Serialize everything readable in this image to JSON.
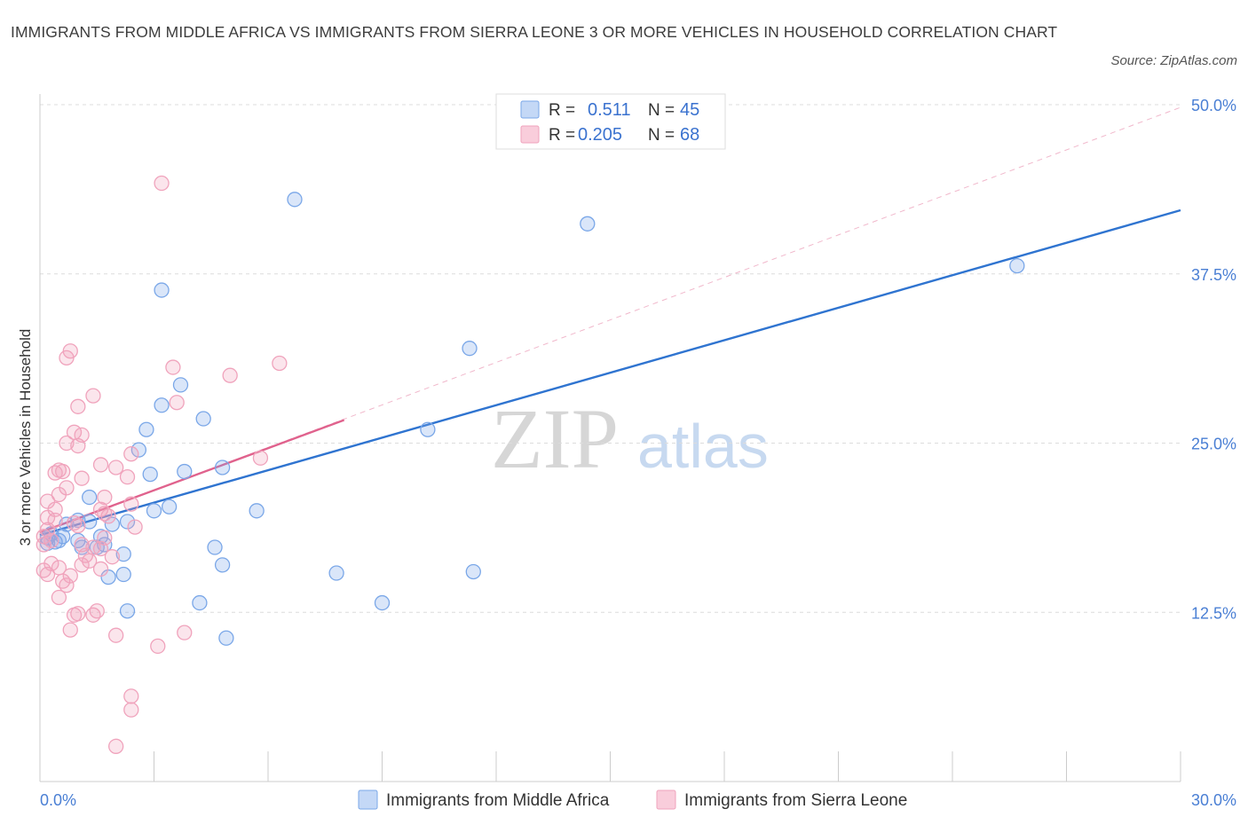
{
  "title": "IMMIGRANTS FROM MIDDLE AFRICA VS IMMIGRANTS FROM SIERRA LEONE 3 OR MORE VEHICLES IN HOUSEHOLD CORRELATION CHART",
  "source": "Source: ZipAtlas.com",
  "watermark": {
    "zip": "ZIP",
    "atlas": "atlas"
  },
  "legend_top": [
    {
      "r_label": "R =",
      "r_value": "0.511",
      "n_label": "N =",
      "n_value": "45",
      "color": "#7aa7e8"
    },
    {
      "r_label": "R =",
      "r_value": "0.205",
      "n_label": "N =",
      "n_value": "68",
      "color": "#f0a3bc"
    }
  ],
  "legend_bottom": [
    {
      "label": "Immigrants from Middle Africa",
      "color": "#7aa7e8"
    },
    {
      "label": "Immigrants from Sierra Leone",
      "color": "#f0a3bc"
    }
  ],
  "chart_data": {
    "type": "scatter",
    "title": "IMMIGRANTS FROM MIDDLE AFRICA VS IMMIGRANTS FROM SIERRA LEONE 3 OR MORE VEHICLES IN HOUSEHOLD CORRELATION CHART",
    "xlabel": "",
    "ylabel": "3 or more Vehicles in Household",
    "xlim": [
      0,
      30
    ],
    "ylim": [
      0,
      50
    ],
    "x_tick_labels": [
      "0.0%",
      "30.0%"
    ],
    "y_ticks": [
      12.5,
      25.0,
      37.5,
      50.0
    ],
    "y_tick_labels": [
      "12.5%",
      "25.0%",
      "37.5%",
      "50.0%"
    ],
    "grid": true,
    "series": [
      {
        "name": "Immigrants from Middle Africa",
        "color": "#7aa7e8",
        "line_color": "#2f74d0",
        "trend": {
          "x": [
            0,
            30
          ],
          "y": [
            18.2,
            42.2
          ]
        },
        "points": [
          [
            0.2,
            18.0
          ],
          [
            0.3,
            18.3
          ],
          [
            0.4,
            17.7
          ],
          [
            0.5,
            17.8
          ],
          [
            0.6,
            18.1
          ],
          [
            0.2,
            17.6
          ],
          [
            0.7,
            19.0
          ],
          [
            1.0,
            19.3
          ],
          [
            1.3,
            19.2
          ],
          [
            1.0,
            17.8
          ],
          [
            1.1,
            17.3
          ],
          [
            1.5,
            17.3
          ],
          [
            1.6,
            18.1
          ],
          [
            1.7,
            17.5
          ],
          [
            1.3,
            21.0
          ],
          [
            1.9,
            19.0
          ],
          [
            2.3,
            19.2
          ],
          [
            2.2,
            16.8
          ],
          [
            2.6,
            24.5
          ],
          [
            2.8,
            26.0
          ],
          [
            2.9,
            22.7
          ],
          [
            3.0,
            20.0
          ],
          [
            3.2,
            27.8
          ],
          [
            3.4,
            20.3
          ],
          [
            3.7,
            29.3
          ],
          [
            3.8,
            22.9
          ],
          [
            4.3,
            26.8
          ],
          [
            4.6,
            17.3
          ],
          [
            4.8,
            23.2
          ],
          [
            4.8,
            16.0
          ],
          [
            5.7,
            20.0
          ],
          [
            6.7,
            43.0
          ],
          [
            7.8,
            15.4
          ],
          [
            9.0,
            13.2
          ],
          [
            10.2,
            26.0
          ],
          [
            11.3,
            32.0
          ],
          [
            11.4,
            15.5
          ],
          [
            14.4,
            41.2
          ],
          [
            25.7,
            38.1
          ],
          [
            4.2,
            13.2
          ],
          [
            4.9,
            10.6
          ],
          [
            2.3,
            12.6
          ],
          [
            3.2,
            36.3
          ],
          [
            2.2,
            15.3
          ],
          [
            1.8,
            15.1
          ]
        ]
      },
      {
        "name": "Immigrants from Sierra Leone",
        "color": "#f0a3bc",
        "line_color": "#e0628d",
        "trend": {
          "x": [
            0,
            8.0
          ],
          "y": [
            18.4,
            26.7
          ]
        },
        "trend_dashed": {
          "x": [
            0,
            30
          ],
          "y": [
            18.4,
            49.8
          ]
        },
        "points": [
          [
            3.2,
            44.2
          ],
          [
            0.7,
            31.3
          ],
          [
            0.8,
            31.8
          ],
          [
            1.4,
            28.5
          ],
          [
            1.0,
            27.7
          ],
          [
            6.3,
            30.9
          ],
          [
            3.5,
            30.6
          ],
          [
            5.0,
            30.0
          ],
          [
            3.6,
            28.0
          ],
          [
            0.9,
            25.8
          ],
          [
            1.1,
            25.6
          ],
          [
            0.7,
            25.0
          ],
          [
            1.0,
            24.8
          ],
          [
            2.4,
            24.2
          ],
          [
            5.8,
            23.9
          ],
          [
            1.6,
            23.4
          ],
          [
            2.0,
            23.2
          ],
          [
            0.5,
            23.0
          ],
          [
            0.6,
            22.9
          ],
          [
            0.4,
            22.8
          ],
          [
            2.3,
            22.5
          ],
          [
            1.1,
            22.4
          ],
          [
            0.7,
            21.7
          ],
          [
            0.5,
            21.2
          ],
          [
            0.2,
            20.7
          ],
          [
            1.7,
            21.0
          ],
          [
            2.4,
            20.5
          ],
          [
            0.4,
            20.1
          ],
          [
            1.6,
            20.1
          ],
          [
            1.7,
            19.8
          ],
          [
            0.2,
            19.5
          ],
          [
            0.4,
            19.3
          ],
          [
            1.0,
            18.9
          ],
          [
            2.5,
            18.8
          ],
          [
            0.2,
            18.6
          ],
          [
            0.1,
            18.1
          ],
          [
            1.7,
            18.0
          ],
          [
            1.1,
            17.5
          ],
          [
            1.4,
            17.3
          ],
          [
            0.1,
            17.5
          ],
          [
            1.6,
            17.2
          ],
          [
            1.2,
            16.7
          ],
          [
            1.3,
            16.3
          ],
          [
            0.3,
            16.1
          ],
          [
            1.1,
            16.0
          ],
          [
            1.6,
            15.7
          ],
          [
            0.1,
            15.6
          ],
          [
            0.2,
            15.3
          ],
          [
            0.8,
            15.2
          ],
          [
            0.6,
            14.8
          ],
          [
            0.7,
            14.5
          ],
          [
            0.5,
            13.6
          ],
          [
            0.9,
            12.3
          ],
          [
            1.4,
            12.3
          ],
          [
            1.5,
            12.6
          ],
          [
            0.8,
            11.2
          ],
          [
            2.0,
            10.8
          ],
          [
            3.1,
            10.0
          ],
          [
            3.8,
            11.0
          ],
          [
            2.4,
            6.3
          ],
          [
            2.4,
            5.3
          ],
          [
            2.0,
            2.6
          ],
          [
            1.0,
            12.4
          ],
          [
            0.3,
            17.8
          ],
          [
            1.8,
            19.6
          ],
          [
            0.9,
            19.1
          ],
          [
            0.5,
            15.8
          ],
          [
            1.9,
            16.6
          ]
        ]
      }
    ]
  }
}
